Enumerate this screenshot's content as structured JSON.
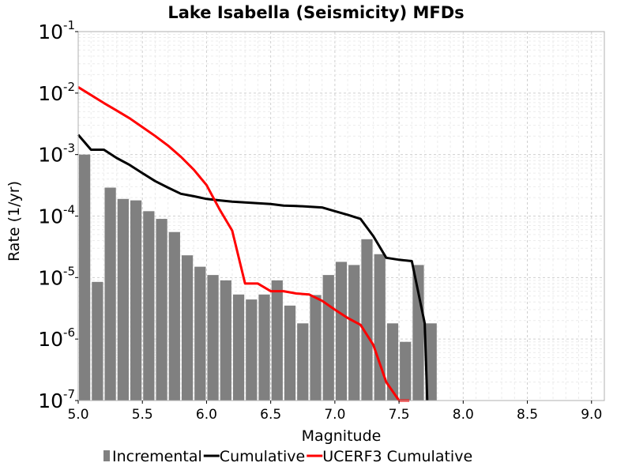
{
  "chart_data": {
    "type": "bar",
    "title": "Lake Isabella (Seismicity) MFDs",
    "xlabel": "Magnitude",
    "ylabel": "Rate (1/yr)",
    "x_scale": "linear",
    "y_scale": "log",
    "xlim": [
      5.0,
      9.1
    ],
    "ylim": [
      1e-07,
      0.1
    ],
    "grid": true,
    "x_ticks": [
      "5.0",
      "5.5",
      "6.0",
      "6.5",
      "7.0",
      "7.5",
      "8.0",
      "8.5",
      "9.0"
    ],
    "x_tick_values": [
      5.0,
      5.5,
      6.0,
      6.5,
      7.0,
      7.5,
      8.0,
      8.5,
      9.0
    ],
    "y_ticks": [
      {
        "base": "10",
        "exp": "-1",
        "value": 0.1
      },
      {
        "base": "10",
        "exp": "-2",
        "value": 0.01
      },
      {
        "base": "10",
        "exp": "-3",
        "value": 0.001
      },
      {
        "base": "10",
        "exp": "-4",
        "value": 0.0001
      },
      {
        "base": "10",
        "exp": "-5",
        "value": 1e-05
      },
      {
        "base": "10",
        "exp": "-6",
        "value": 1e-06
      },
      {
        "base": "10",
        "exp": "-7",
        "value": 1e-07
      }
    ],
    "legend_position": "bottom",
    "series": [
      {
        "name": "Incremental",
        "kind": "bar",
        "color": "#808080",
        "bar_width": 0.1,
        "x": [
          5.05,
          5.15,
          5.25,
          5.35,
          5.45,
          5.55,
          5.65,
          5.75,
          5.85,
          5.95,
          6.05,
          6.15,
          6.25,
          6.35,
          6.45,
          6.55,
          6.65,
          6.75,
          6.85,
          6.95,
          7.05,
          7.15,
          7.25,
          7.35,
          7.45,
          7.55,
          7.65,
          7.75
        ],
        "y": [
          0.001,
          8.5e-06,
          0.00029,
          0.00019,
          0.00018,
          0.00012,
          9e-05,
          5.5e-05,
          2.3e-05,
          1.5e-05,
          1.1e-05,
          9e-06,
          5.3e-06,
          4.4e-06,
          5.3e-06,
          9e-06,
          3.5e-06,
          1.8e-06,
          5.2e-06,
          1.1e-05,
          1.8e-05,
          1.6e-05,
          4.2e-05,
          2.4e-05,
          1.8e-06,
          9e-07,
          1.6e-05,
          1.8e-06
        ]
      },
      {
        "name": "Cumulative",
        "kind": "line",
        "color": "#000000",
        "x": [
          5.0,
          5.1,
          5.2,
          5.3,
          5.4,
          5.5,
          5.6,
          5.7,
          5.8,
          5.9,
          6.0,
          6.1,
          6.2,
          6.3,
          6.4,
          6.5,
          6.6,
          6.7,
          6.8,
          6.9,
          7.0,
          7.1,
          7.2,
          7.3,
          7.4,
          7.5,
          7.6,
          7.7,
          7.72
        ],
        "y": [
          0.0021,
          0.0012,
          0.0012,
          0.00088,
          0.00068,
          0.0005,
          0.00037,
          0.00029,
          0.00023,
          0.00021,
          0.00019,
          0.00018,
          0.000172,
          0.000167,
          0.000162,
          0.000157,
          0.000148,
          0.000146,
          0.000142,
          0.000138,
          0.00012,
          0.000105,
          9e-05,
          4.7e-05,
          2.1e-05,
          1.95e-05,
          1.85e-05,
          1.8e-06,
          1e-07
        ]
      },
      {
        "name": "UCERF3 Cumulative",
        "kind": "line",
        "color": "#ff0000",
        "x": [
          5.0,
          5.1,
          5.2,
          5.3,
          5.4,
          5.5,
          5.6,
          5.7,
          5.8,
          5.9,
          6.0,
          6.1,
          6.2,
          6.3,
          6.4,
          6.5,
          6.6,
          6.7,
          6.8,
          6.9,
          7.0,
          7.1,
          7.2,
          7.3,
          7.4,
          7.5,
          7.55,
          7.58
        ],
        "y": [
          0.0125,
          0.0093,
          0.0069,
          0.0052,
          0.0039,
          0.0028,
          0.002,
          0.0014,
          0.00092,
          0.00057,
          0.00032,
          0.00013,
          5.8e-05,
          8e-06,
          8e-06,
          6e-06,
          6e-06,
          5.5e-06,
          5.3e-06,
          4.2e-06,
          3e-06,
          2.2e-06,
          1.7e-06,
          8e-07,
          2e-07,
          1e-07,
          1e-07,
          1e-07
        ]
      }
    ]
  }
}
